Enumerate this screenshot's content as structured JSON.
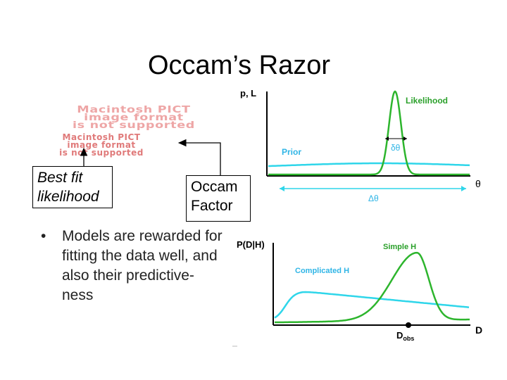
{
  "title": "Occam’s Razor",
  "pict_placeholder": {
    "top": [
      "Macintosh PICT",
      "image format",
      "is not supported"
    ],
    "bottom": [
      "Macintosh PICT",
      "image format",
      "is not supported"
    ]
  },
  "callouts": {
    "best_fit": [
      "Best fit",
      "likelihood"
    ],
    "occam": [
      "Occam",
      "Factor"
    ]
  },
  "bullet": {
    "symbol": "•",
    "lines": [
      "Models are rewarded for",
      "fitting the data well, and",
      "also their predictive-",
      "ness"
    ]
  },
  "top_plot": {
    "y_label": "p, L",
    "x_label": "θ",
    "likelihood_label": "Likelihood",
    "prior_label": "Prior",
    "narrow_width_label": "δθ",
    "wide_width_label": "Δθ",
    "colors": {
      "likelihood": "#2db52d",
      "prior": "#2fd6ea",
      "label_green": "#2aa02a",
      "label_blue": "#2fb5e6"
    }
  },
  "bottom_plot": {
    "y_label": "P(D|H)",
    "x_label": "D",
    "simple_label": "Simple H",
    "complicated_label": "Complicated H",
    "obs_label": "D",
    "obs_sub": "obs",
    "colors": {
      "simple": "#2db52d",
      "complicated": "#2fd6ea"
    }
  }
}
